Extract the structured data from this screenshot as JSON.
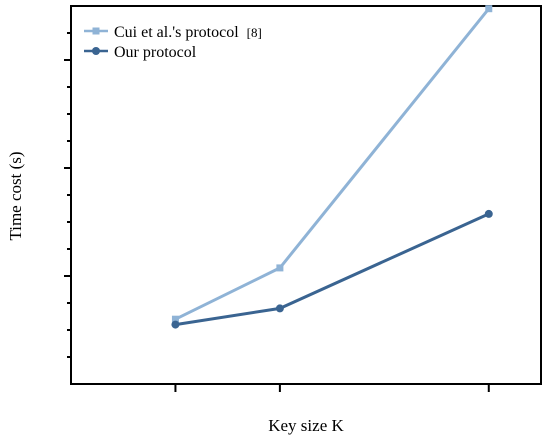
{
  "chart_data": {
    "type": "line",
    "title": "",
    "xlabel": "Key size K",
    "ylabel": "Time cost (s)",
    "categories": [
      "",
      "",
      ""
    ],
    "x": [
      1,
      2,
      4
    ],
    "xlim": [
      0,
      4.5
    ],
    "ylim": [
      0,
      7
    ],
    "grid": false,
    "legend_position": "top-left",
    "series": [
      {
        "name": "Cui et al.'s protocol",
        "name_ref": "[8]",
        "values": [
          1.2,
          2.15,
          6.95
        ],
        "color": "#8fb3d6",
        "marker": "square"
      },
      {
        "name": "Our protocol",
        "name_ref": "",
        "values": [
          1.1,
          1.4,
          3.15
        ],
        "color": "#3a6491",
        "marker": "circle"
      }
    ]
  }
}
